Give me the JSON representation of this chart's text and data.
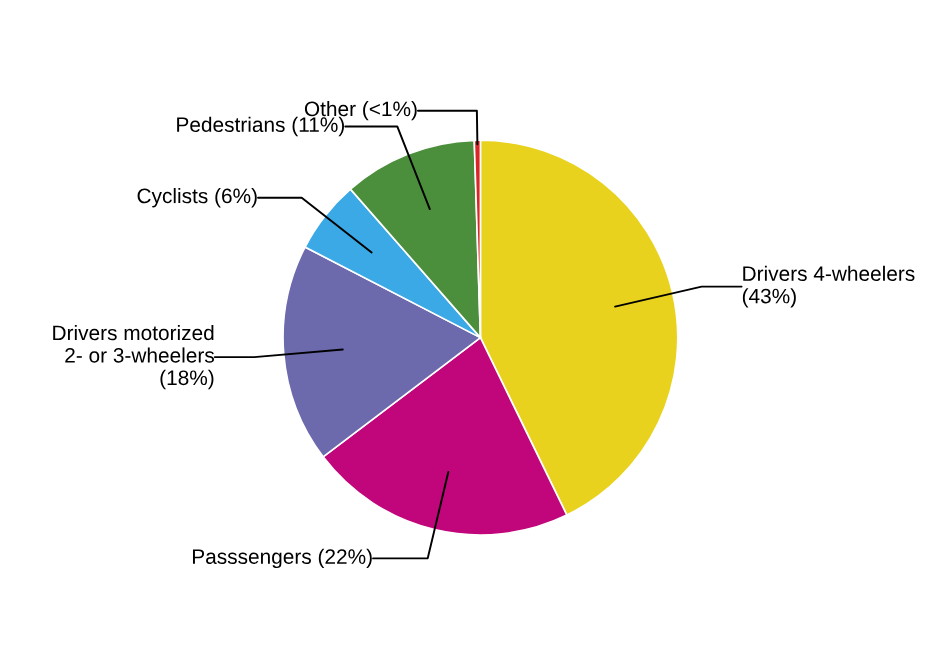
{
  "chart_data": {
    "type": "pie",
    "categories": [
      "Drivers 4-wheelers\n(43%)",
      "Passsengers (22%)",
      "Drivers motorized\n2- or 3-wheelers\n(18%)",
      "Cyclists (6%)",
      "Pedestrians (11%)",
      "Other (<1%)"
    ],
    "values": [
      43,
      22,
      18,
      6,
      11,
      0.5
    ],
    "colors": [
      "#e8d21d",
      "#c0067a",
      "#6c6aad",
      "#3ba9e6",
      "#4b8f3c",
      "#d9262b"
    ],
    "legend": false
  }
}
